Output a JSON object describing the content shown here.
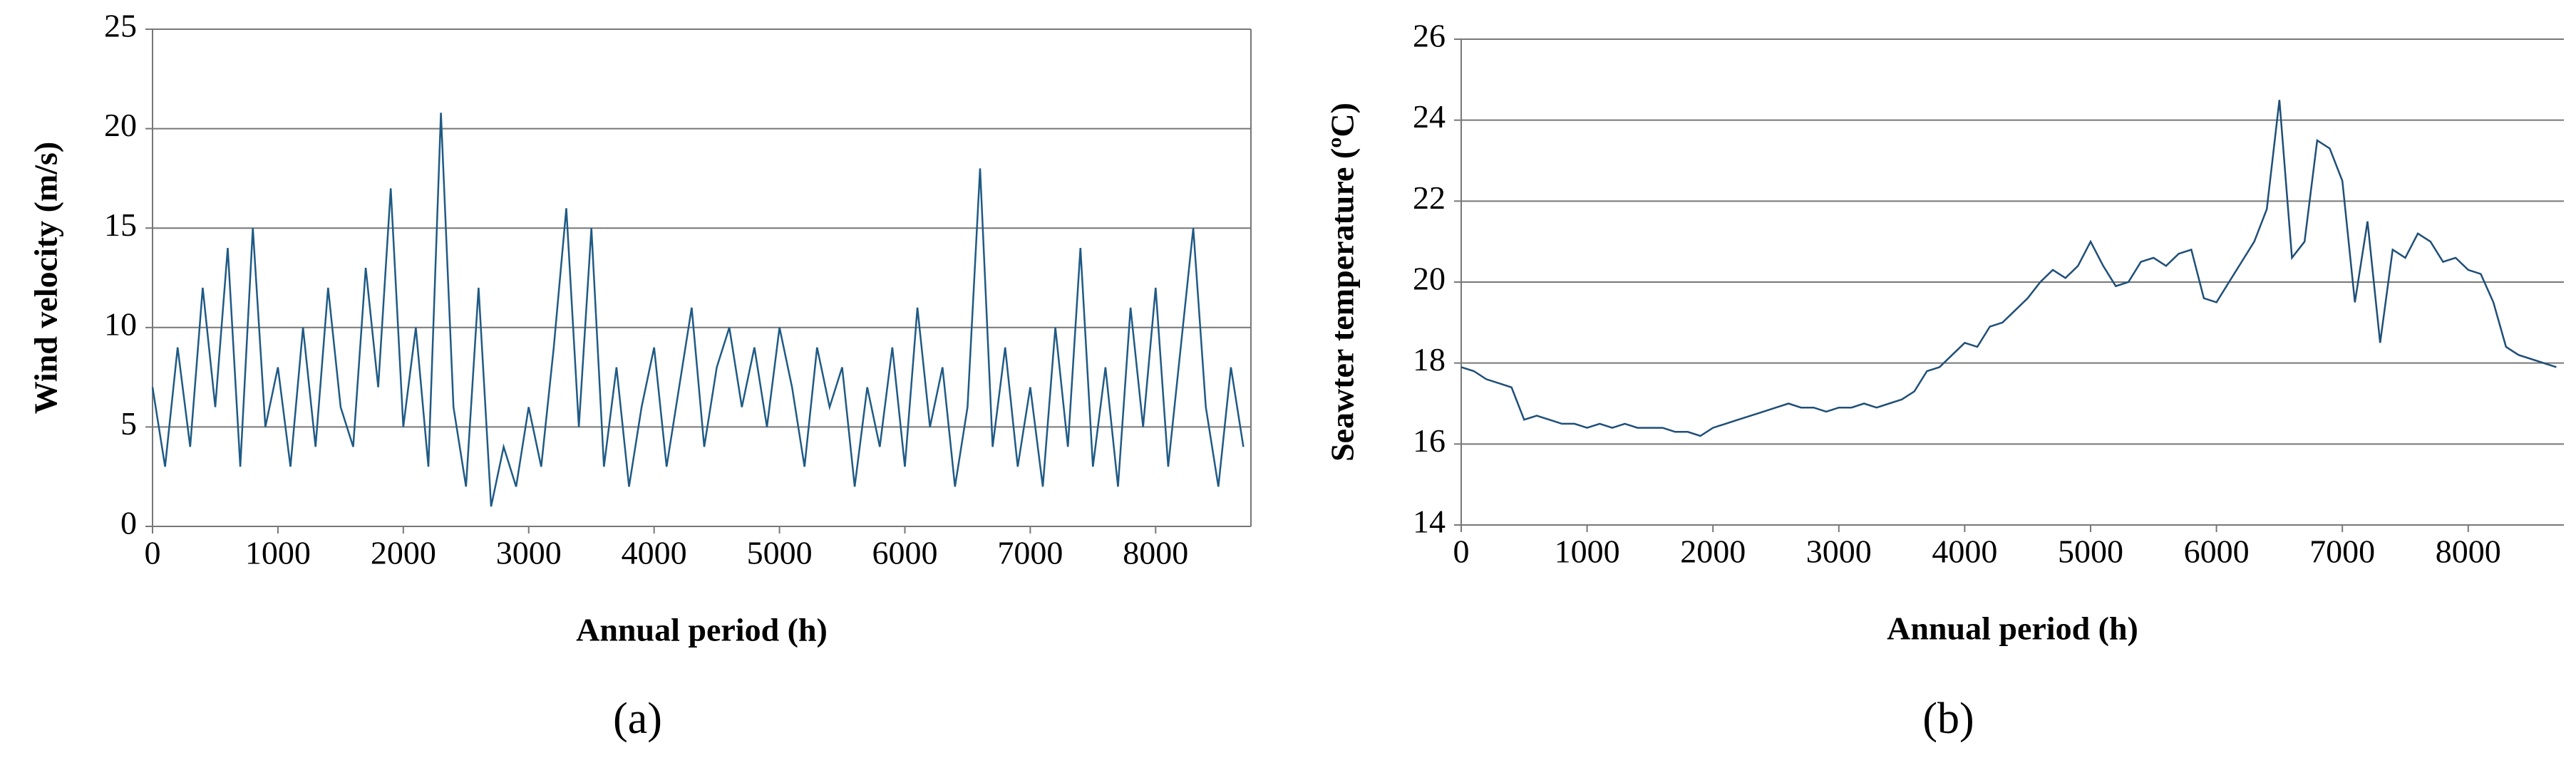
{
  "chart_data": [
    {
      "type": "line",
      "caption": "(a)",
      "x_label": "Annual period (h)",
      "y_label": "Wind velocity (m/s)",
      "x": [
        0,
        100,
        200,
        300,
        400,
        500,
        600,
        700,
        800,
        900,
        1000,
        1100,
        1200,
        1300,
        1400,
        1500,
        1600,
        1700,
        1800,
        1900,
        2000,
        2100,
        2200,
        2300,
        2400,
        2500,
        2600,
        2700,
        2800,
        2900,
        3000,
        3100,
        3200,
        3300,
        3400,
        3500,
        3600,
        3700,
        3800,
        3900,
        4000,
        4100,
        4200,
        4300,
        4400,
        4500,
        4600,
        4700,
        4800,
        4900,
        5000,
        5100,
        5200,
        5300,
        5400,
        5500,
        5600,
        5700,
        5800,
        5900,
        6000,
        6100,
        6200,
        6300,
        6400,
        6500,
        6600,
        6700,
        6800,
        6900,
        7000,
        7100,
        7200,
        7300,
        7400,
        7500,
        7600,
        7700,
        7800,
        7900,
        8000,
        8100,
        8200,
        8300,
        8400,
        8500,
        8600,
        8700
      ],
      "series": [
        {
          "color": "#1f5a85",
          "values": [
            7,
            3,
            9,
            4,
            12,
            6,
            14,
            3,
            15,
            5,
            8,
            3,
            10,
            4,
            12,
            6,
            4,
            13,
            7,
            17,
            5,
            10,
            3,
            20.8,
            6,
            2,
            12,
            1,
            4,
            2,
            6,
            3,
            9,
            16,
            5,
            15,
            3,
            8,
            2,
            6,
            9,
            3,
            7,
            11,
            4,
            8,
            10,
            6,
            9,
            5,
            10,
            7,
            3,
            9,
            6,
            8,
            2,
            7,
            4,
            9,
            3,
            11,
            5,
            8,
            2,
            6,
            18,
            4,
            9,
            3,
            7,
            2,
            10,
            4,
            14,
            3,
            8,
            2,
            11,
            5,
            12,
            3,
            9,
            15,
            6,
            2,
            8,
            4
          ]
        }
      ],
      "xlim": [
        0,
        8760
      ],
      "xticks": [
        0,
        1000,
        2000,
        3000,
        4000,
        5000,
        6000,
        7000,
        8000
      ],
      "ylim": [
        0,
        25
      ],
      "yticks": [
        0,
        5,
        10,
        15,
        20,
        25
      ],
      "grid": true
    },
    {
      "type": "line",
      "caption": "(b)",
      "x_label": "Annual period (h)",
      "y_label": "Seawter temperature (ºC)",
      "x": [
        0,
        100,
        200,
        300,
        400,
        500,
        600,
        700,
        800,
        900,
        1000,
        1100,
        1200,
        1300,
        1400,
        1500,
        1600,
        1700,
        1800,
        1900,
        2000,
        2100,
        2200,
        2300,
        2400,
        2500,
        2600,
        2700,
        2800,
        2900,
        3000,
        3100,
        3200,
        3300,
        3400,
        3500,
        3600,
        3700,
        3800,
        3900,
        4000,
        4100,
        4200,
        4300,
        4400,
        4500,
        4600,
        4700,
        4800,
        4900,
        5000,
        5100,
        5200,
        5300,
        5400,
        5500,
        5600,
        5700,
        5800,
        5900,
        6000,
        6100,
        6200,
        6300,
        6400,
        6500,
        6600,
        6700,
        6800,
        6900,
        7000,
        7100,
        7200,
        7300,
        7400,
        7500,
        7600,
        7700,
        7800,
        7900,
        8000,
        8100,
        8200,
        8300,
        8400,
        8500,
        8600,
        8700
      ],
      "series": [
        {
          "color": "#1f4f78",
          "values": [
            17.9,
            17.8,
            17.6,
            17.5,
            17.4,
            16.6,
            16.7,
            16.6,
            16.5,
            16.5,
            16.4,
            16.5,
            16.4,
            16.5,
            16.4,
            16.4,
            16.4,
            16.3,
            16.3,
            16.2,
            16.4,
            16.5,
            16.6,
            16.7,
            16.8,
            16.9,
            17.0,
            16.9,
            16.9,
            16.8,
            16.9,
            16.9,
            17.0,
            16.9,
            17.0,
            17.1,
            17.3,
            17.8,
            17.9,
            18.2,
            18.5,
            18.4,
            18.9,
            19.0,
            19.3,
            19.6,
            20.0,
            20.3,
            20.1,
            20.4,
            21.0,
            20.4,
            19.9,
            20.0,
            20.5,
            20.6,
            20.4,
            20.7,
            20.8,
            19.6,
            19.5,
            20.0,
            20.5,
            21.0,
            21.8,
            24.5,
            20.6,
            21.0,
            23.5,
            23.3,
            22.5,
            19.5,
            21.5,
            18.5,
            20.8,
            20.6,
            21.2,
            21.0,
            20.5,
            20.6,
            20.3,
            20.2,
            19.5,
            18.4,
            18.2,
            18.1,
            18.0,
            17.9
          ]
        }
      ],
      "xlim": [
        0,
        8760
      ],
      "xticks": [
        0,
        1000,
        2000,
        3000,
        4000,
        5000,
        6000,
        7000,
        8000
      ],
      "ylim": [
        14,
        26
      ],
      "yticks": [
        14,
        16,
        18,
        20,
        22,
        24,
        26
      ],
      "grid": true
    }
  ]
}
